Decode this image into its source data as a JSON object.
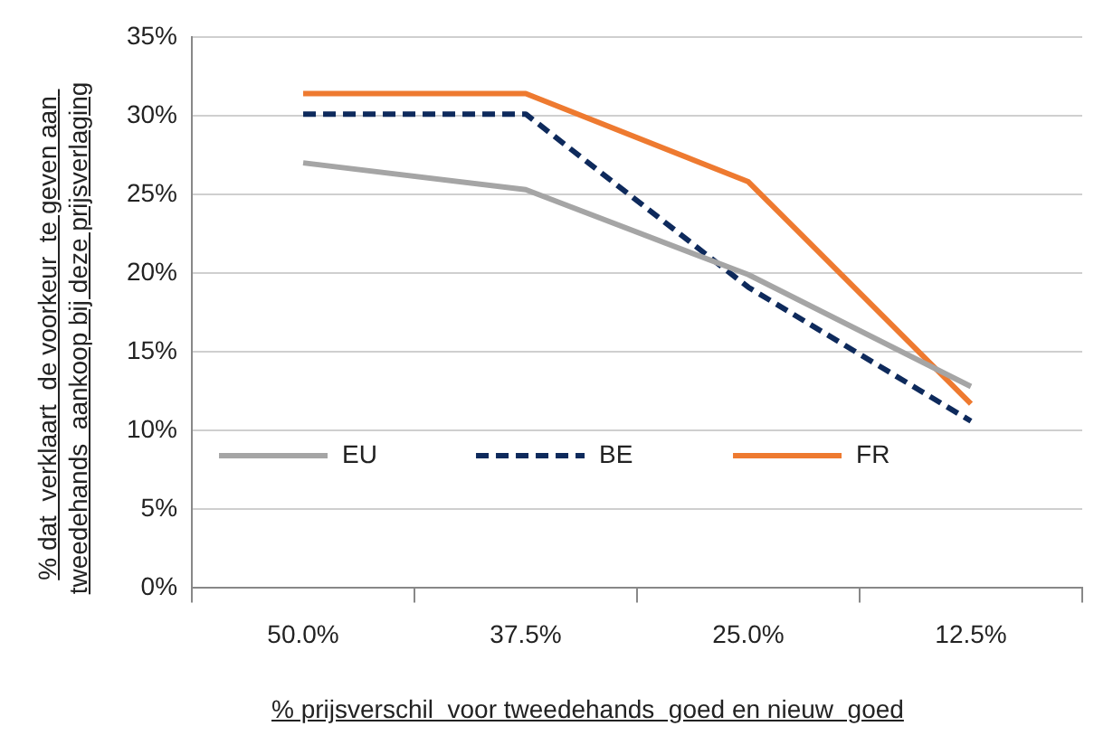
{
  "chart_data": {
    "type": "line",
    "xlabel": "% prijsverschil  voor tweedehands  goed en nieuw  goed",
    "ylabel": "% dat  verklaart  de voorkeur  te geven aan tweedehands  aankoop bij deze prijsverlaging",
    "categories": [
      "50.0%",
      "37.5%",
      "25.0%",
      "12.5%"
    ],
    "series": [
      {
        "name": "EU",
        "color": "#a5a5a5",
        "values": [
          27.0,
          25.3,
          19.9,
          12.8
        ]
      },
      {
        "name": "BE",
        "color": "#0e2a5c",
        "line_style": "dashed",
        "values": [
          30.1,
          30.1,
          19.1,
          10.6
        ]
      },
      {
        "name": "FR",
        "color": "#ee7a30",
        "values": [
          31.4,
          31.4,
          25.8,
          11.7
        ]
      }
    ],
    "ylim": [
      0,
      35
    ],
    "yticks": [
      {
        "value": 0,
        "label": "0%"
      },
      {
        "value": 5,
        "label": "5%"
      },
      {
        "value": 10,
        "label": "10%"
      },
      {
        "value": 15,
        "label": "15%"
      },
      {
        "value": 20,
        "label": "20%"
      },
      {
        "value": 25,
        "label": "25%"
      },
      {
        "value": 30,
        "label": "30%"
      },
      {
        "value": 35,
        "label": "35%"
      }
    ],
    "grid": "y",
    "legend": "left",
    "marker": "none",
    "line_style": "solid"
  }
}
